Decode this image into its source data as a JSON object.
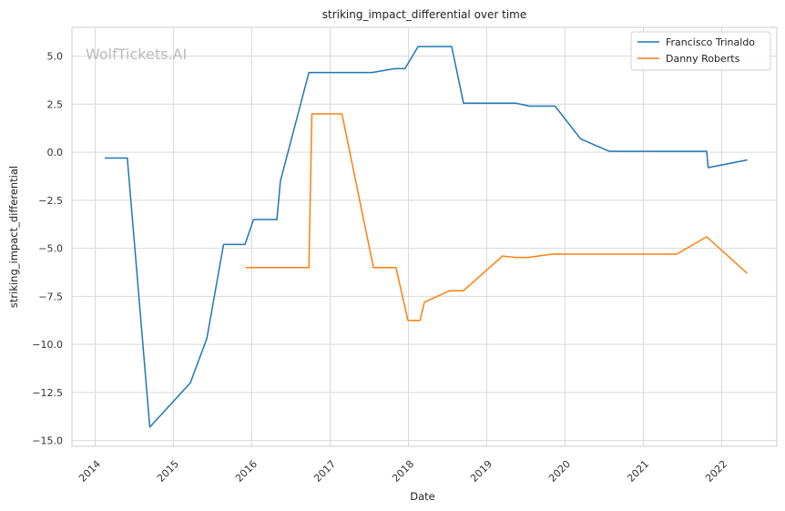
{
  "chart_data": {
    "type": "line",
    "title": "striking_impact_differential over time",
    "xlabel": "Date",
    "ylabel": "striking_impact_differential",
    "watermark": "WolfTickets.AI",
    "x_ticks": [
      "2014",
      "2015",
      "2016",
      "2017",
      "2018",
      "2019",
      "2020",
      "2021",
      "2022"
    ],
    "y_ticks": [
      5.0,
      2.5,
      0.0,
      -2.5,
      -5.0,
      -7.5,
      -10.0,
      -12.5,
      -15.0
    ],
    "y_tick_labels": [
      "5.0",
      "2.5",
      "0.0",
      "−2.5",
      "−5.0",
      "−7.5",
      "−10.0",
      "−12.5",
      "−15.0"
    ],
    "xlim": [
      "2013-09-15",
      "2022-09-15"
    ],
    "ylim": [
      -15.3,
      6.5
    ],
    "grid": true,
    "legend_position": "top-right",
    "series": [
      {
        "name": "Francisco Trinaldo",
        "color": "#1f77b4",
        "points": [
          [
            "2014-02-15",
            -0.3
          ],
          [
            "2014-05-31",
            -0.3
          ],
          [
            "2014-09-13",
            -14.3
          ],
          [
            "2015-03-21",
            -12.0
          ],
          [
            "2015-06-06",
            -9.7
          ],
          [
            "2015-08-23",
            -4.8
          ],
          [
            "2015-12-01",
            -4.8
          ],
          [
            "2016-01-10",
            -3.5
          ],
          [
            "2016-04-28",
            -3.5
          ],
          [
            "2016-05-14",
            -1.5
          ],
          [
            "2016-09-24",
            4.15
          ],
          [
            "2017-07-16",
            4.15
          ],
          [
            "2017-10-28",
            4.35
          ],
          [
            "2017-12-16",
            4.35
          ],
          [
            "2018-02-15",
            5.5
          ],
          [
            "2018-07-22",
            5.5
          ],
          [
            "2018-09-15",
            2.55
          ],
          [
            "2019-05-18",
            2.55
          ],
          [
            "2019-07-20",
            2.4
          ],
          [
            "2019-11-16",
            2.4
          ],
          [
            "2020-03-14",
            0.7
          ],
          [
            "2020-07-25",
            0.05
          ],
          [
            "2021-10-23",
            0.05
          ],
          [
            "2021-10-30",
            -0.8
          ],
          [
            "2022-04-30",
            -0.4
          ]
        ]
      },
      {
        "name": "Danny Roberts",
        "color": "#ff7f0e",
        "points": [
          [
            "2015-12-05",
            -6.0
          ],
          [
            "2016-09-24",
            -6.0
          ],
          [
            "2016-10-08",
            2.0
          ],
          [
            "2017-02-25",
            2.0
          ],
          [
            "2017-07-22",
            -6.0
          ],
          [
            "2017-11-04",
            -6.0
          ],
          [
            "2017-12-30",
            -8.75
          ],
          [
            "2018-02-24",
            -8.75
          ],
          [
            "2018-03-17",
            -7.8
          ],
          [
            "2018-07-14",
            -7.2
          ],
          [
            "2018-09-15",
            -7.2
          ],
          [
            "2019-03-16",
            -5.4
          ],
          [
            "2019-05-18",
            -5.47
          ],
          [
            "2019-07-13",
            -5.47
          ],
          [
            "2019-11-02",
            -5.3
          ],
          [
            "2021-06-05",
            -5.3
          ],
          [
            "2021-10-23",
            -4.4
          ],
          [
            "2022-04-30",
            -6.3
          ]
        ]
      }
    ]
  }
}
